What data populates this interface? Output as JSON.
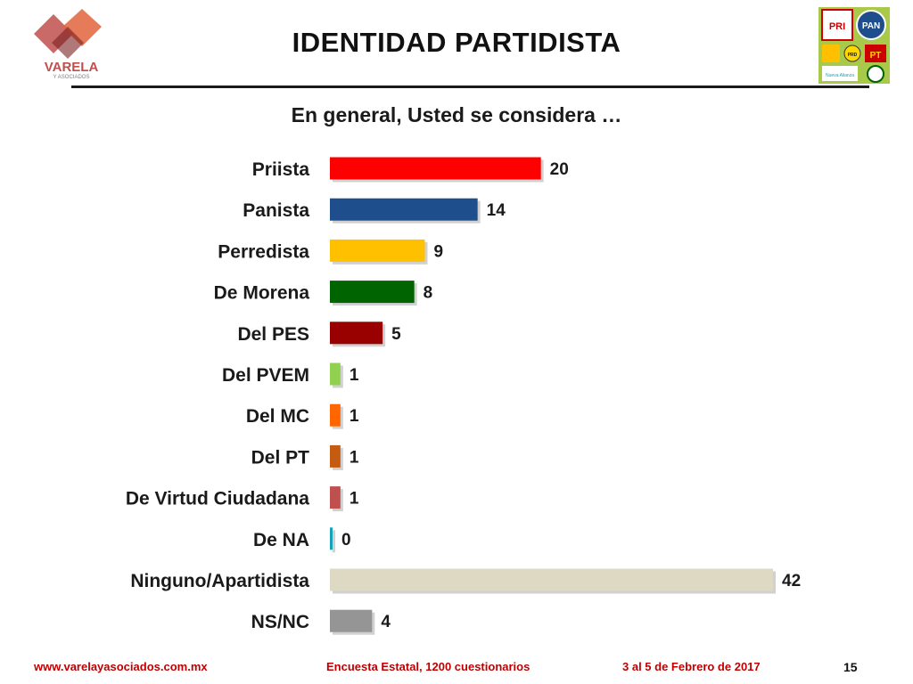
{
  "header": {
    "title": "IDENTIDAD PARTIDISTA",
    "logo_text": "VARELA",
    "logo_subtext": "Y ASOCIADOS",
    "party_logos": [
      "PRI",
      "PAN",
      "PRD",
      "PT",
      "Nueva Alianza"
    ]
  },
  "question": "En general, Usted se considera …",
  "chart_data": {
    "type": "bar",
    "orientation": "horizontal",
    "categories": [
      "Priista",
      "Panista",
      "Perredista",
      "De Morena",
      "Del PES",
      "Del PVEM",
      "Del MC",
      "Del PT",
      "De Virtud Ciudadana",
      "De NA",
      "Ninguno/Apartidista",
      "NS/NC"
    ],
    "values": [
      20,
      14,
      9,
      8,
      5,
      1,
      1,
      1,
      1,
      0,
      42,
      4
    ],
    "colors": [
      "#ff0000",
      "#1f4e8c",
      "#ffc000",
      "#006400",
      "#990000",
      "#92d050",
      "#ff6600",
      "#c55a11",
      "#c0504d",
      "#17a2b8",
      "#ddd9c3",
      "#959595"
    ],
    "xlim": [
      0,
      42
    ],
    "grid": false,
    "legend": "none"
  },
  "footer": {
    "url": "www.varelayasociados.com.mx",
    "survey": "Encuesta Estatal, 1200 cuestionarios",
    "date": "3 al 5 de Febrero de 2017",
    "page": "15"
  }
}
